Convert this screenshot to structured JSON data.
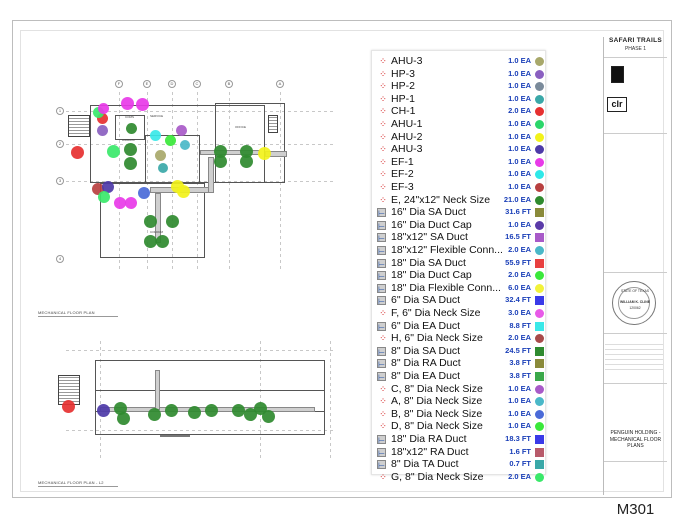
{
  "sheet": {
    "project_title": "SAFARI TRAILS",
    "project_phase": "PHASE 1",
    "sheet_title": "PENGUIN HOLDING - MECHANICAL FLOOR PLANS",
    "sheet_number": "M301",
    "seal": {
      "top_text": "STATE OF TEXAS",
      "name": "WILLIAM K. CLINE",
      "number": "120062"
    },
    "logo_text": "clr"
  },
  "plans": [
    {
      "title": "MECHANICAL FLOOR PLAN"
    },
    {
      "title": "MECHANICAL FLOOR PLAN - L2"
    }
  ],
  "grid_bubbles": [
    "F",
    "E",
    "D",
    "C",
    "B",
    "A",
    "1",
    "2",
    "3",
    "4"
  ],
  "legend": {
    "items": [
      {
        "icon": "dots-icon",
        "label": "AHU-3",
        "qty": "1.0 EA",
        "color": "#a8a86a",
        "shape": "circle"
      },
      {
        "icon": "dots-icon",
        "label": "HP-3",
        "qty": "1.0 EA",
        "color": "#8a5fc0",
        "shape": "circle"
      },
      {
        "icon": "dots-icon",
        "label": "HP-2",
        "qty": "1.0 EA",
        "color": "#7a8a9a",
        "shape": "circle"
      },
      {
        "icon": "dots-icon",
        "label": "HP-1",
        "qty": "1.0 EA",
        "color": "#3aa8a8",
        "shape": "circle"
      },
      {
        "icon": "dots-icon",
        "label": "CH-1",
        "qty": "2.0 EA",
        "color": "#e63030",
        "shape": "circle"
      },
      {
        "icon": "dots-icon",
        "label": "AHU-1",
        "qty": "1.0 EA",
        "color": "#2bd66a",
        "shape": "circle"
      },
      {
        "icon": "dots-icon",
        "label": "AHU-2",
        "qty": "1.0 EA",
        "color": "#f2f21a",
        "shape": "circle"
      },
      {
        "icon": "dots-icon",
        "label": "AHU-3",
        "qty": "1.0 EA",
        "color": "#4d3aa8",
        "shape": "circle"
      },
      {
        "icon": "dots-icon",
        "label": "EF-1",
        "qty": "1.0 EA",
        "color": "#e83ae8",
        "shape": "circle"
      },
      {
        "icon": "dots-icon",
        "label": "EF-2",
        "qty": "1.0 EA",
        "color": "#2ee8e8",
        "shape": "circle"
      },
      {
        "icon": "dots-icon",
        "label": "EF-3",
        "qty": "1.0 EA",
        "color": "#b84040",
        "shape": "circle"
      },
      {
        "icon": "dots-icon",
        "label": "E, 24\"x12\" Neck Size",
        "qty": "21.0 EA",
        "color": "#2f8a2f",
        "shape": "circle"
      },
      {
        "icon": "duct-icon",
        "label": "16\" Dia SA Duct",
        "qty": "31.6 FT",
        "color": "#8a8a3a",
        "shape": "square"
      },
      {
        "icon": "duct-icon",
        "label": "16\" Dia Duct Cap",
        "qty": "1.0 EA",
        "color": "#5a3aa8",
        "shape": "circle"
      },
      {
        "icon": "duct-icon",
        "label": "18\"x12\" SA Duct",
        "qty": "16.5 FT",
        "color": "#a85ac8",
        "shape": "square"
      },
      {
        "icon": "duct-icon",
        "label": "18\"x12\" Flexible Conn...",
        "qty": "2.0 EA",
        "color": "#4ab8c8",
        "shape": "circle"
      },
      {
        "icon": "duct-icon",
        "label": "18\" Dia SA Duct",
        "qty": "55.9 FT",
        "color": "#e84040",
        "shape": "square"
      },
      {
        "icon": "duct-icon",
        "label": "18\" Dia Duct Cap",
        "qty": "2.0 EA",
        "color": "#3ae83a",
        "shape": "circle"
      },
      {
        "icon": "duct-icon",
        "label": "18\" Dia Flexible Conn...",
        "qty": "6.0 EA",
        "color": "#f2f23a",
        "shape": "circle"
      },
      {
        "icon": "duct-icon",
        "label": "6\" Dia SA Duct",
        "qty": "32.4 FT",
        "color": "#3a3ae8",
        "shape": "square"
      },
      {
        "icon": "dots-icon",
        "label": "F, 6\" Dia Neck Size",
        "qty": "3.0 EA",
        "color": "#e85ae8",
        "shape": "circle"
      },
      {
        "icon": "duct-icon",
        "label": "6\" Dia EA Duct",
        "qty": "8.8 FT",
        "color": "#3ae8e8",
        "shape": "square"
      },
      {
        "icon": "dots-icon",
        "label": "H, 6\" Dia Neck Size",
        "qty": "2.0 EA",
        "color": "#a84a4a",
        "shape": "circle"
      },
      {
        "icon": "duct-icon",
        "label": "8\" Dia SA Duct",
        "qty": "24.5 FT",
        "color": "#2f8a2f",
        "shape": "square"
      },
      {
        "icon": "duct-icon",
        "label": "8\" Dia RA Duct",
        "qty": "3.8 FT",
        "color": "#8a8a3a",
        "shape": "square"
      },
      {
        "icon": "duct-icon",
        "label": "8\" Dia EA Duct",
        "qty": "3.8 FT",
        "color": "#3aa84a",
        "shape": "square"
      },
      {
        "icon": "dots-icon",
        "label": "C, 8\" Dia Neck Size",
        "qty": "1.0 EA",
        "color": "#a85ac8",
        "shape": "circle"
      },
      {
        "icon": "dots-icon",
        "label": "A, 8\" Dia Neck Size",
        "qty": "1.0 EA",
        "color": "#4ab8c8",
        "shape": "circle"
      },
      {
        "icon": "dots-icon",
        "label": "B, 8\" Dia Neck Size",
        "qty": "1.0 EA",
        "color": "#4a6ad8",
        "shape": "circle"
      },
      {
        "icon": "dots-icon",
        "label": "D, 8\" Dia Neck Size",
        "qty": "1.0 EA",
        "color": "#3ae83a",
        "shape": "circle"
      },
      {
        "icon": "duct-icon",
        "label": "18\" Dia RA Duct",
        "qty": "18.3 FT",
        "color": "#3a3ae8",
        "shape": "square"
      },
      {
        "icon": "duct-icon",
        "label": "18\"x12\" RA Duct",
        "qty": "1.6 FT",
        "color": "#b85a6a",
        "shape": "square"
      },
      {
        "icon": "duct-icon",
        "label": "8\" Dia TA Duct",
        "qty": "0.7 FT",
        "color": "#3aa8a8",
        "shape": "square"
      },
      {
        "icon": "dots-icon",
        "label": "G, 8\" Dia Neck Size",
        "qty": "2.0 EA",
        "color": "#3ae86a",
        "shape": "circle"
      }
    ]
  },
  "colors": {
    "qty_text": "#1a3fb8",
    "marker_red": "#d40000",
    "duct_icon_blue": "#1f4fa8"
  }
}
